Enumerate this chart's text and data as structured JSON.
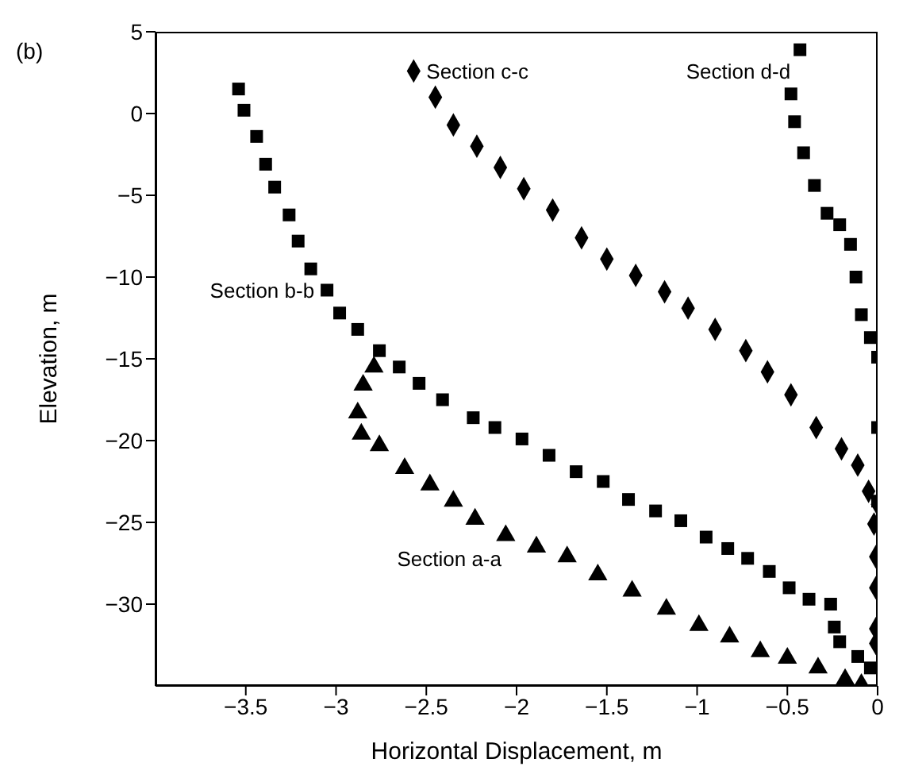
{
  "chart_data": {
    "type": "scatter",
    "title": "(b)",
    "xlabel": "Horizontal Displacement, m",
    "ylabel": "Elevation, m",
    "xlim": [
      -4,
      0
    ],
    "ylim": [
      -35,
      5
    ],
    "xticks": [
      -3.5,
      -3,
      -2.5,
      -2,
      -1.5,
      -1,
      -0.5,
      0
    ],
    "yticks": [
      5,
      0,
      -5,
      -10,
      -15,
      -20,
      -25,
      -30
    ],
    "series": [
      {
        "name": "Section a-a",
        "marker": "triangle",
        "color": "#000000",
        "x": [
          -2.79,
          -2.85,
          -2.88,
          -2.86,
          -2.76,
          -2.62,
          -2.48,
          -2.35,
          -2.23,
          -2.06,
          -1.89,
          -1.72,
          -1.55,
          -1.36,
          -1.17,
          -0.99,
          -0.82,
          -0.65,
          -0.5,
          -0.33,
          -0.18,
          -0.09
        ],
        "values": [
          -15.5,
          -16.6,
          -18.3,
          -19.6,
          -20.3,
          -21.7,
          -22.7,
          -23.7,
          -24.8,
          -25.8,
          -26.5,
          -27.1,
          -28.2,
          -29.2,
          -30.3,
          -31.3,
          -32.0,
          -32.9,
          -33.3,
          -33.9,
          -34.6,
          -34.9
        ]
      },
      {
        "name": "Section b-b",
        "marker": "square",
        "color": "#000000",
        "x": [
          -3.54,
          -3.51,
          -3.44,
          -3.39,
          -3.34,
          -3.26,
          -3.21,
          -3.14,
          -3.05,
          -2.98,
          -2.88,
          -2.76,
          -2.65,
          -2.54,
          -2.41,
          -2.24,
          -2.12,
          -1.97,
          -1.82,
          -1.67,
          -1.52,
          -1.38,
          -1.23,
          -1.09,
          -0.95,
          -0.83,
          -0.72,
          -0.6,
          -0.49,
          -0.38,
          -0.26,
          -0.24,
          -0.21,
          -0.11,
          -0.04
        ],
        "values": [
          1.5,
          0.2,
          -1.4,
          -3.1,
          -4.5,
          -6.2,
          -7.8,
          -9.5,
          -10.8,
          -12.2,
          -13.2,
          -14.5,
          -15.5,
          -16.5,
          -17.5,
          -18.6,
          -19.2,
          -19.9,
          -20.9,
          -21.9,
          -22.5,
          -23.6,
          -24.3,
          -24.9,
          -25.9,
          -26.6,
          -27.2,
          -28.0,
          -29.0,
          -29.7,
          -30.0,
          -31.4,
          -32.3,
          -33.2,
          -33.9
        ]
      },
      {
        "name": "Section c-c",
        "marker": "diamond",
        "color": "#000000",
        "x": [
          -2.57,
          -2.45,
          -2.35,
          -2.22,
          -2.09,
          -1.96,
          -1.8,
          -1.64,
          -1.5,
          -1.34,
          -1.18,
          -1.05,
          -0.9,
          -0.73,
          -0.61,
          -0.48,
          -0.34,
          -0.2,
          -0.11,
          -0.05,
          0,
          -0.02,
          -0.01,
          -0.01,
          -0.01,
          -0.01
        ],
        "values": [
          2.6,
          1.0,
          -0.7,
          -2.0,
          -3.3,
          -4.6,
          -5.9,
          -7.6,
          -8.9,
          -9.9,
          -10.9,
          -11.9,
          -13.2,
          -14.5,
          -15.8,
          -17.2,
          -19.2,
          -20.5,
          -21.5,
          -23.1,
          -23.9,
          -25.1,
          -27.1,
          -29.0,
          -31.5,
          -32.4
        ]
      },
      {
        "name": "Section d-d",
        "marker": "square",
        "color": "#000000",
        "x": [
          -0.43,
          -0.48,
          -0.46,
          -0.41,
          -0.35,
          -0.28,
          -0.21,
          -0.15,
          -0.12,
          -0.09,
          -0.04,
          0,
          0,
          0
        ],
        "values": [
          3.9,
          1.2,
          -0.5,
          -2.4,
          -4.4,
          -6.1,
          -6.8,
          -8.0,
          -10.0,
          -12.3,
          -13.7,
          -14.9,
          -19.2,
          -23.7
        ]
      }
    ]
  }
}
